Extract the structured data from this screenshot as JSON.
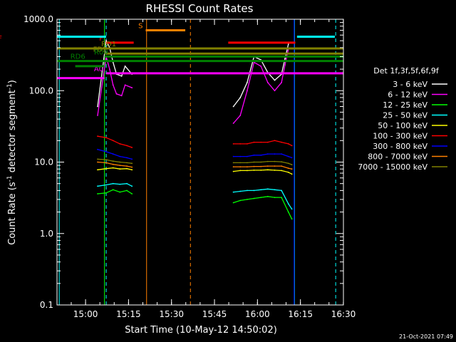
{
  "chart_data": {
    "type": "line",
    "title": "RHESSI Count Rates",
    "xlabel": "Start Time (10-May-12 14:50:02)",
    "ylabel_main": "Count Rate (s",
    "ylabel_sup1": "-1",
    "ylabel_mid": " detector segment",
    "ylabel_sup2": "-1",
    "ylabel_end": ")",
    "y_scale": "log",
    "ylim": [
      0.1,
      1000
    ],
    "xlim": [
      14.8339,
      16.5
    ],
    "x_ticks": [
      {
        "value": 15.0,
        "label": "15:00"
      },
      {
        "value": 15.25,
        "label": "15:15"
      },
      {
        "value": 15.5,
        "label": "15:30"
      },
      {
        "value": 15.75,
        "label": "15:45"
      },
      {
        "value": 16.0,
        "label": "16:00"
      },
      {
        "value": 16.25,
        "label": "16:15"
      },
      {
        "value": 16.5,
        "label": "16:30"
      }
    ],
    "y_ticks": [
      {
        "value": 0.1,
        "label": "0.1"
      },
      {
        "value": 1,
        "label": "1.0"
      },
      {
        "value": 10,
        "label": "10.0"
      },
      {
        "value": 100,
        "label": "100.0"
      },
      {
        "value": 1000,
        "label": "1000.0"
      }
    ],
    "legend_title": "Det 1f,3f,5f,6f,9f",
    "legend_position": "right",
    "series": [
      {
        "name": "3 - 6 keV",
        "color": "#ffffff",
        "points": [
          [
            15.07,
            60
          ],
          [
            15.12,
            500
          ],
          [
            15.14,
            400
          ],
          [
            15.16,
            250
          ],
          [
            15.18,
            170
          ],
          [
            15.21,
            160
          ],
          [
            15.23,
            220
          ],
          [
            15.27,
            170
          ],
          [
            15.86,
            60
          ],
          [
            15.9,
            80
          ],
          [
            15.94,
            130
          ],
          [
            15.98,
            300
          ],
          [
            16.02,
            270
          ],
          [
            16.06,
            180
          ],
          [
            16.1,
            140
          ],
          [
            16.14,
            170
          ],
          [
            16.16,
            280
          ],
          [
            16.18,
            450
          ]
        ]
      },
      {
        "name": "6 - 12 keV",
        "color": "#ff00ff",
        "points": [
          [
            15.07,
            45
          ],
          [
            15.12,
            300
          ],
          [
            15.14,
            200
          ],
          [
            15.16,
            120
          ],
          [
            15.18,
            90
          ],
          [
            15.21,
            85
          ],
          [
            15.23,
            120
          ],
          [
            15.27,
            110
          ],
          [
            15.86,
            35
          ],
          [
            15.9,
            45
          ],
          [
            15.94,
            100
          ],
          [
            15.98,
            250
          ],
          [
            16.02,
            220
          ],
          [
            16.06,
            130
          ],
          [
            16.1,
            100
          ],
          [
            16.14,
            130
          ],
          [
            16.16,
            230
          ],
          [
            16.18,
            380
          ]
        ]
      },
      {
        "name": "12 - 25 keV",
        "color": "#00ff00",
        "points": [
          [
            15.07,
            3.6
          ],
          [
            15.12,
            3.7
          ],
          [
            15.16,
            4.1
          ],
          [
            15.2,
            3.8
          ],
          [
            15.24,
            4.0
          ],
          [
            15.27,
            3.6
          ],
          [
            15.86,
            2.7
          ],
          [
            15.9,
            2.9
          ],
          [
            15.94,
            3.0
          ],
          [
            15.98,
            3.1
          ],
          [
            16.02,
            3.2
          ],
          [
            16.06,
            3.3
          ],
          [
            16.1,
            3.2
          ],
          [
            16.14,
            3.2
          ],
          [
            16.18,
            2.0
          ],
          [
            16.2,
            1.6
          ]
        ]
      },
      {
        "name": "25 - 50 keV",
        "color": "#00ffff",
        "points": [
          [
            15.07,
            4.6
          ],
          [
            15.12,
            4.8
          ],
          [
            15.16,
            5.0
          ],
          [
            15.2,
            4.9
          ],
          [
            15.24,
            5.0
          ],
          [
            15.27,
            4.6
          ],
          [
            15.86,
            3.8
          ],
          [
            15.9,
            3.9
          ],
          [
            15.94,
            4.0
          ],
          [
            15.98,
            4.0
          ],
          [
            16.02,
            4.1
          ],
          [
            16.06,
            4.2
          ],
          [
            16.1,
            4.1
          ],
          [
            16.14,
            4.0
          ],
          [
            16.18,
            2.6
          ],
          [
            16.2,
            2.2
          ]
        ]
      },
      {
        "name": "50 - 100 keV",
        "color": "#ffff00",
        "points": [
          [
            15.07,
            7.8
          ],
          [
            15.12,
            8.1
          ],
          [
            15.16,
            8.3
          ],
          [
            15.2,
            8.0
          ],
          [
            15.24,
            8.1
          ],
          [
            15.27,
            7.8
          ],
          [
            15.86,
            7.4
          ],
          [
            15.9,
            7.6
          ],
          [
            15.94,
            7.6
          ],
          [
            15.98,
            7.7
          ],
          [
            16.02,
            7.7
          ],
          [
            16.06,
            7.8
          ],
          [
            16.1,
            7.7
          ],
          [
            16.14,
            7.6
          ],
          [
            16.18,
            7.2
          ],
          [
            16.2,
            6.8
          ]
        ]
      },
      {
        "name": "100 - 300 keV",
        "color": "#ff0000",
        "points": [
          [
            15.07,
            23
          ],
          [
            15.12,
            22
          ],
          [
            15.16,
            20
          ],
          [
            15.2,
            18
          ],
          [
            15.24,
            17
          ],
          [
            15.27,
            16
          ],
          [
            15.86,
            18
          ],
          [
            15.9,
            18
          ],
          [
            15.94,
            18
          ],
          [
            15.98,
            19
          ],
          [
            16.02,
            19
          ],
          [
            16.06,
            19
          ],
          [
            16.1,
            20
          ],
          [
            16.14,
            19
          ],
          [
            16.18,
            18
          ],
          [
            16.2,
            17
          ]
        ]
      },
      {
        "name": "300 - 800 keV",
        "color": "#0000ff",
        "points": [
          [
            15.07,
            15
          ],
          [
            15.12,
            14
          ],
          [
            15.16,
            13
          ],
          [
            15.2,
            12
          ],
          [
            15.24,
            11.5
          ],
          [
            15.27,
            11
          ],
          [
            15.86,
            12
          ],
          [
            15.9,
            12
          ],
          [
            15.94,
            12
          ],
          [
            15.98,
            12.5
          ],
          [
            16.02,
            12.5
          ],
          [
            16.06,
            13
          ],
          [
            16.1,
            13
          ],
          [
            16.14,
            13
          ],
          [
            16.18,
            12
          ],
          [
            16.2,
            11.5
          ]
        ]
      },
      {
        "name": "800 - 7000 keV",
        "color": "#ff8000",
        "points": [
          [
            15.07,
            10
          ],
          [
            15.12,
            9.8
          ],
          [
            15.16,
            9.3
          ],
          [
            15.2,
            9.0
          ],
          [
            15.24,
            8.8
          ],
          [
            15.27,
            8.5
          ],
          [
            15.86,
            8.6
          ],
          [
            15.9,
            8.6
          ],
          [
            15.94,
            8.6
          ],
          [
            15.98,
            8.7
          ],
          [
            16.02,
            8.7
          ],
          [
            16.06,
            8.8
          ],
          [
            16.1,
            8.8
          ],
          [
            16.14,
            8.8
          ],
          [
            16.18,
            8.2
          ],
          [
            16.2,
            8.0
          ]
        ]
      },
      {
        "name": "7000 - 15000 keV",
        "color": "#808000",
        "points": [
          [
            15.07,
            11
          ],
          [
            15.12,
            10.8
          ],
          [
            15.16,
            10.3
          ],
          [
            15.2,
            10.0
          ],
          [
            15.24,
            9.8
          ],
          [
            15.27,
            9.6
          ],
          [
            15.86,
            9.8
          ],
          [
            15.9,
            9.8
          ],
          [
            15.94,
            9.8
          ],
          [
            15.98,
            10.0
          ],
          [
            16.02,
            10.0
          ],
          [
            16.06,
            10.2
          ],
          [
            16.1,
            10.2
          ],
          [
            16.14,
            10.1
          ],
          [
            16.18,
            9.6
          ],
          [
            16.2,
            9.2
          ]
        ]
      }
    ],
    "state_bars": [
      {
        "label": "S",
        "color": "#ff8000",
        "y": 700,
        "x1": 15.35,
        "x2": 15.58,
        "label_side": "left"
      },
      {
        "label": "F",
        "color": "#ff0000",
        "y": 470,
        "x1": 15.12,
        "x2": 15.28,
        "label_side": "left"
      },
      {
        "label": "F",
        "color": "#ff0000",
        "y": 470,
        "x1": 15.83,
        "x2": 16.22,
        "label_side": "none"
      },
      {
        "label": "RD1",
        "color": "#808000",
        "y": 390,
        "x1": 14.8339,
        "x2": 16.5,
        "label_side": "overlay",
        "label_x": 15.135
      },
      {
        "label": "FD2",
        "color": "#808000",
        "y": 330,
        "x1": 15.11,
        "x2": 16.5,
        "label_side": "overlay",
        "label_x": 15.085
      },
      {
        "label": "R00",
        "color": "#008000",
        "y": 300,
        "x1": 15.11,
        "x2": 16.5,
        "label_side": "overlay",
        "label_x": 15.09
      },
      {
        "label": "RD6",
        "color": "#008000",
        "y": 260,
        "x1": 14.8339,
        "x2": 16.5,
        "label_side": "overlay",
        "label_x": 14.955
      },
      {
        "label": "A0",
        "color": "#ff00ff",
        "y": 175,
        "x1": 15.12,
        "x2": 16.5,
        "label_side": "left"
      },
      {
        "label": "",
        "color": "#00ffff",
        "y": 570,
        "x1": 14.8339,
        "x2": 15.12,
        "label_side": "none"
      },
      {
        "label": "",
        "color": "#00ffff",
        "y": 570,
        "x1": 16.23,
        "x2": 16.45,
        "label_side": "none"
      },
      {
        "label": "",
        "color": "#ff00ff",
        "y": 150,
        "x1": 14.8339,
        "x2": 15.11,
        "label_side": "none"
      },
      {
        "label": "",
        "color": "#008000",
        "y": 220,
        "x1": 14.94,
        "x2": 15.11,
        "label_side": "none"
      }
    ],
    "vertical_markers": [
      {
        "x": 14.847,
        "color": "#00ffff",
        "style": "solid"
      },
      {
        "x": 15.12,
        "color": "#00ffff",
        "style": "dashed"
      },
      {
        "x": 15.355,
        "color": "#ff8000",
        "style": "solid"
      },
      {
        "x": 15.61,
        "color": "#ff8000",
        "style": "dashed"
      },
      {
        "x": 16.215,
        "color": "#00ffff",
        "style": "solid"
      },
      {
        "x": 16.455,
        "color": "#00ffff",
        "style": "dashed"
      },
      {
        "x": 16.213,
        "color": "#0000ff",
        "style": "solid"
      },
      {
        "x": 15.11,
        "color": "#00ff00",
        "style": "solid"
      }
    ],
    "footer_date": "21-Oct-2021 07:49"
  }
}
